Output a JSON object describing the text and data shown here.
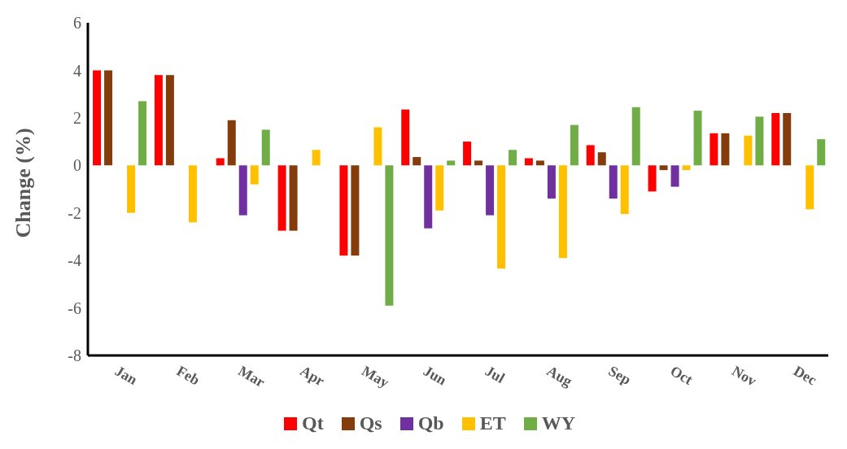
{
  "chart_data": {
    "type": "bar",
    "ylabel": "Change (%)",
    "categories": [
      "Jan",
      "Feb",
      "Mar",
      "Apr",
      "May",
      "Jun",
      "Jul",
      "Aug",
      "Sep",
      "Oct",
      "Nov",
      "Dec"
    ],
    "series": [
      {
        "name": "Qt",
        "color": "#ff0000",
        "values": [
          4.0,
          3.8,
          0.3,
          -2.75,
          -3.8,
          2.35,
          1.0,
          0.3,
          0.85,
          -1.1,
          1.35,
          2.2
        ]
      },
      {
        "name": "Qs",
        "color": "#843c0c",
        "values": [
          4.0,
          3.8,
          1.9,
          -2.75,
          -3.8,
          0.35,
          0.2,
          0.2,
          0.55,
          -0.2,
          1.35,
          2.2
        ]
      },
      {
        "name": "Qb",
        "color": "#7030a0",
        "values": [
          null,
          null,
          -2.1,
          null,
          null,
          -2.65,
          -2.1,
          -1.4,
          -1.4,
          -0.9,
          null,
          null
        ]
      },
      {
        "name": "ET",
        "color": "#ffc000",
        "values": [
          -2.0,
          -2.4,
          -0.8,
          0.65,
          1.6,
          -1.9,
          -4.35,
          -3.9,
          -2.05,
          -0.2,
          1.25,
          -1.85
        ]
      },
      {
        "name": "WY",
        "color": "#70ad47",
        "values": [
          2.7,
          null,
          1.5,
          null,
          -5.9,
          0.2,
          0.65,
          1.7,
          2.45,
          2.3,
          2.05,
          1.1
        ]
      }
    ],
    "ylim": [
      -8,
      6
    ],
    "yticks": [
      -8,
      -6,
      -4,
      -2,
      0,
      2,
      4,
      6
    ],
    "grid": false,
    "legend": "bottom"
  }
}
